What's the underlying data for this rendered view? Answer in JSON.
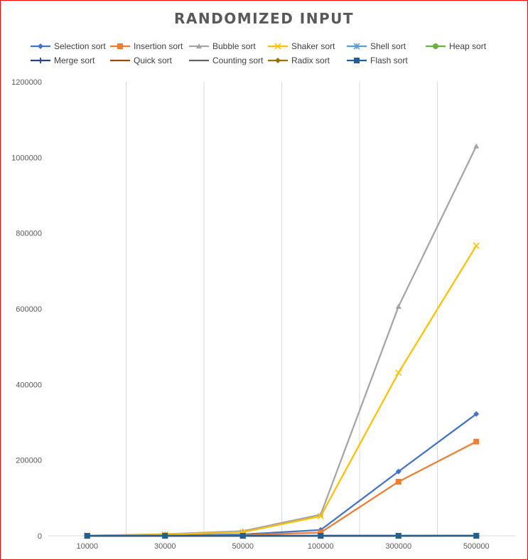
{
  "chart_data": {
    "type": "line",
    "title": "RANDOMIZED INPUT",
    "xlabel": "",
    "ylabel": "",
    "categories": [
      "10000",
      "30000",
      "50000",
      "100000",
      "300000",
      "500000"
    ],
    "ylim": [
      0,
      1200000
    ],
    "yticks": [
      0,
      200000,
      400000,
      600000,
      800000,
      1000000,
      1200000
    ],
    "grid": "vertical",
    "legend_position": "top",
    "series": [
      {
        "name": "Selection sort",
        "color": "#4472C4",
        "marker": "diamond",
        "values": [
          130,
          1300,
          3700,
          15500,
          170000,
          322000
        ]
      },
      {
        "name": "Insertion sort",
        "color": "#ED7D31",
        "marker": "square",
        "values": [
          70,
          700,
          2100,
          8500,
          143000,
          249000
        ]
      },
      {
        "name": "Bubble sort",
        "color": "#A5A5A5",
        "marker": "triangle",
        "values": [
          400,
          4500,
          12500,
          56000,
          606000,
          1030000
        ]
      },
      {
        "name": "Shaker sort",
        "color": "#FFC000",
        "marker": "x",
        "values": [
          300,
          3500,
          9500,
          52000,
          431000,
          767000
        ]
      },
      {
        "name": "Shell sort",
        "color": "#5B9BD5",
        "marker": "star",
        "values": [
          1,
          5,
          10,
          20,
          80,
          150
        ]
      },
      {
        "name": "Heap sort",
        "color": "#70AD47",
        "marker": "circle",
        "values": [
          2,
          8,
          15,
          30,
          100,
          180
        ]
      },
      {
        "name": "Merge sort",
        "color": "#264478",
        "marker": "plus",
        "values": [
          2,
          7,
          12,
          25,
          80,
          140
        ]
      },
      {
        "name": "Quick sort",
        "color": "#9E480E",
        "marker": "dash",
        "values": [
          1,
          4,
          7,
          14,
          45,
          80
        ]
      },
      {
        "name": "Counting sort",
        "color": "#636363",
        "marker": "dash",
        "values": [
          0,
          1,
          1,
          2,
          5,
          8
        ]
      },
      {
        "name": "Radix sort",
        "color": "#997300",
        "marker": "diamond",
        "values": [
          1,
          2,
          4,
          8,
          25,
          40
        ]
      },
      {
        "name": "Flash sort",
        "color": "#255E91",
        "marker": "square",
        "values": [
          0,
          1,
          2,
          3,
          10,
          16
        ]
      }
    ]
  }
}
